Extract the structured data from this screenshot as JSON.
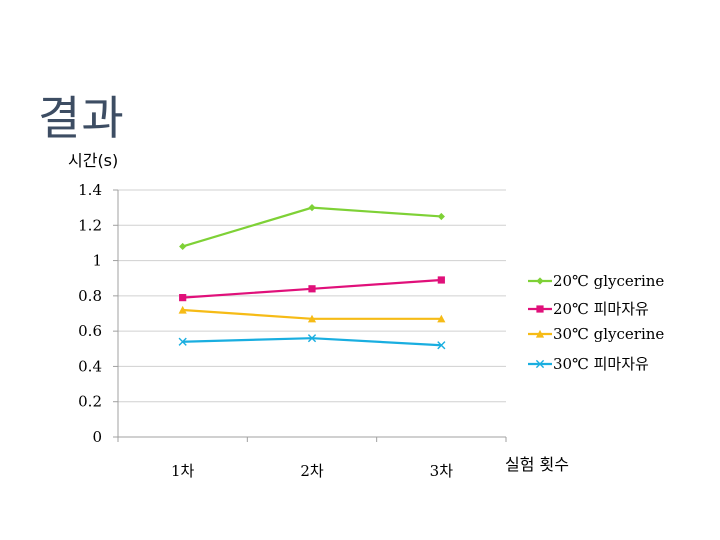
{
  "slide": {
    "title": "결과"
  },
  "chart_data": {
    "type": "line",
    "ylabel": "시간(s)",
    "xlabel": "실험 횟수",
    "categories": [
      "1차",
      "2차",
      "3차"
    ],
    "ylim": [
      0,
      1.4
    ],
    "yticks": [
      "0",
      "0.2",
      "0.4",
      "0.6",
      "0.8",
      "1",
      "1.2",
      "1.4"
    ],
    "ytick_values": [
      0,
      0.2,
      0.4,
      0.6,
      0.8,
      1.0,
      1.2,
      1.4
    ],
    "grid": true,
    "legend_position": "right",
    "series": [
      {
        "name": "20℃ glycerine",
        "values": [
          1.08,
          1.3,
          1.25
        ],
        "color": "#7ed136",
        "marker": "diamond"
      },
      {
        "name": "20℃ 피마자유",
        "values": [
          0.79,
          0.84,
          0.89
        ],
        "color": "#e0107a",
        "marker": "square"
      },
      {
        "name": "30℃ glycerine",
        "values": [
          0.72,
          0.67,
          0.67
        ],
        "color": "#f6bb16",
        "marker": "triangle"
      },
      {
        "name": "30℃ 피마자유",
        "values": [
          0.54,
          0.56,
          0.52
        ],
        "color": "#19aee0",
        "marker": "x"
      }
    ]
  }
}
